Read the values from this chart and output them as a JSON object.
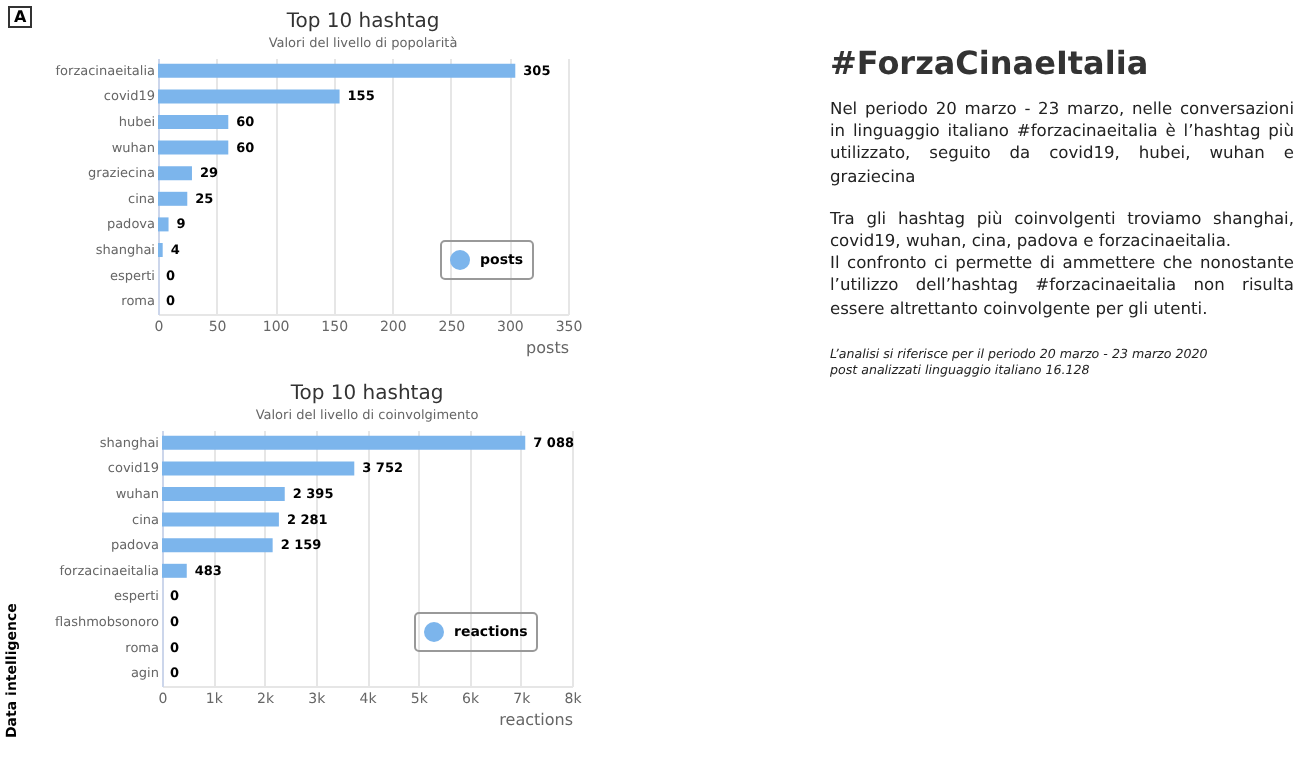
{
  "chart_data": [
    {
      "type": "bar",
      "orientation": "horizontal",
      "title": "Top 10 hashtag",
      "subtitle": "Valori del livello di popolarità",
      "xlabel": "posts",
      "categories": [
        "forzacinaeitalia",
        "covid19",
        "hubei",
        "wuhan",
        "graziecina",
        "cina",
        "padova",
        "shanghai",
        "esperti",
        "roma"
      ],
      "series": [
        {
          "name": "posts",
          "color": "#7cb5ec",
          "values": [
            305,
            155,
            60,
            60,
            29,
            25,
            9,
            4,
            0,
            0
          ],
          "value_labels": [
            "305",
            "155",
            "60",
            "60",
            "29",
            "25",
            "9",
            "4",
            "0",
            "0"
          ]
        }
      ],
      "xlim": [
        0,
        350
      ],
      "xticks": [
        0,
        50,
        100,
        150,
        200,
        250,
        300,
        350
      ],
      "grid": "x",
      "legend": "bottom right"
    },
    {
      "type": "bar",
      "orientation": "horizontal",
      "title": "Top 10 hashtag",
      "subtitle": "Valori del livello di coinvolgimento",
      "xlabel": "reactions",
      "categories": [
        "shanghai",
        "covid19",
        "wuhan",
        "cina",
        "padova",
        "forzacinaeitalia",
        "esperti",
        "flashmobsonoro",
        "roma",
        "agin"
      ],
      "series": [
        {
          "name": "reactions",
          "color": "#7cb5ec",
          "values": [
            7088,
            3752,
            2395,
            2281,
            2159,
            483,
            0,
            0,
            0,
            0
          ],
          "value_labels": [
            "7 088",
            "3 752",
            "2 395",
            "2 281",
            "2 159",
            "483",
            "0",
            "0",
            "0",
            "0"
          ]
        }
      ],
      "xlim": [
        0,
        8000
      ],
      "xticks": [
        0,
        {
          "value": 1000,
          "label": "1k"
        },
        {
          "value": 2000,
          "label": "2k"
        },
        {
          "value": 3000,
          "label": "3k"
        },
        {
          "value": 4000,
          "label": "4k"
        },
        {
          "value": 5000,
          "label": "5k"
        },
        {
          "value": 6000,
          "label": "6k"
        },
        {
          "value": 7000,
          "label": "7k"
        },
        {
          "value": 8000,
          "label": "8k"
        }
      ],
      "grid": "x",
      "legend": "bottom right"
    },
    {
      "type": "other",
      "title": "#ForzaCinaeItalia",
      "annotations": [
        "Nel periodo 20 marzo - 23 marzo, nelle conversazioni in linguaggio italiano #forzacinaeitalia è l’hashtag più utilizzato, seguito da covid19, hubei, wuhan e graziecina",
        "Tra gli hashtag più coinvolgenti troviamo shanghai, covid19, wuhan, cina, padova e forzacinaeitalia.",
        "Il confronto ci permette di ammettere che nonostante l’utilizzo dell’hashtag #forzacinaeitalia non risulta essere altrettanto coinvolgente per gli utenti.",
        "L’analisi si riferisce per il periodo 20 marzo - 23 marzo 2020",
        "post analizzati linguaggio italiano 16.128",
        "A",
        "Data intelligence"
      ]
    }
  ]
}
